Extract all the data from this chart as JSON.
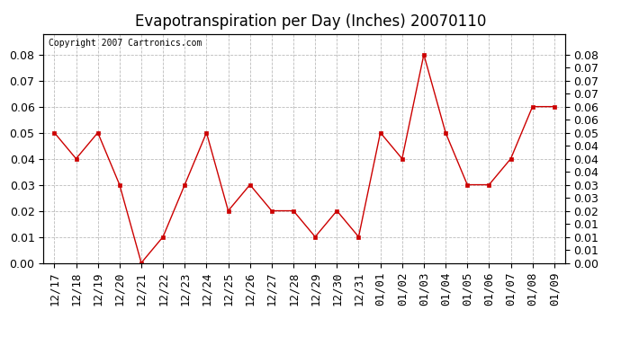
{
  "title": "Evapotranspiration per Day (Inches) 20070110",
  "copyright_text": "Copyright 2007 Cartronics.com",
  "x_labels": [
    "12/17",
    "12/18",
    "12/19",
    "12/20",
    "12/21",
    "12/22",
    "12/23",
    "12/24",
    "12/25",
    "12/26",
    "12/27",
    "12/28",
    "12/29",
    "12/30",
    "12/31",
    "01/01",
    "01/02",
    "01/03",
    "01/04",
    "01/05",
    "01/06",
    "01/07",
    "01/08",
    "01/09"
  ],
  "y_values": [
    0.05,
    0.04,
    0.05,
    0.03,
    0.0,
    0.01,
    0.03,
    0.05,
    0.02,
    0.03,
    0.02,
    0.02,
    0.01,
    0.02,
    0.01,
    0.05,
    0.04,
    0.08,
    0.05,
    0.03,
    0.03,
    0.04,
    0.06,
    0.06
  ],
  "line_color": "#cc0000",
  "marker": "s",
  "marker_size": 3,
  "ylim": [
    0.0,
    0.088
  ],
  "yticks_left": [
    0.0,
    0.01,
    0.02,
    0.03,
    0.04,
    0.05,
    0.06,
    0.07,
    0.08
  ],
  "yticks_right": [
    0.0,
    0.005,
    0.01,
    0.015,
    0.02,
    0.025,
    0.03,
    0.035,
    0.04,
    0.045,
    0.05,
    0.055,
    0.06,
    0.065,
    0.07,
    0.075,
    0.08
  ],
  "background_color": "#ffffff",
  "grid_color": "#bbbbbb",
  "title_fontsize": 12,
  "copyright_fontsize": 7,
  "tick_fontsize": 9
}
